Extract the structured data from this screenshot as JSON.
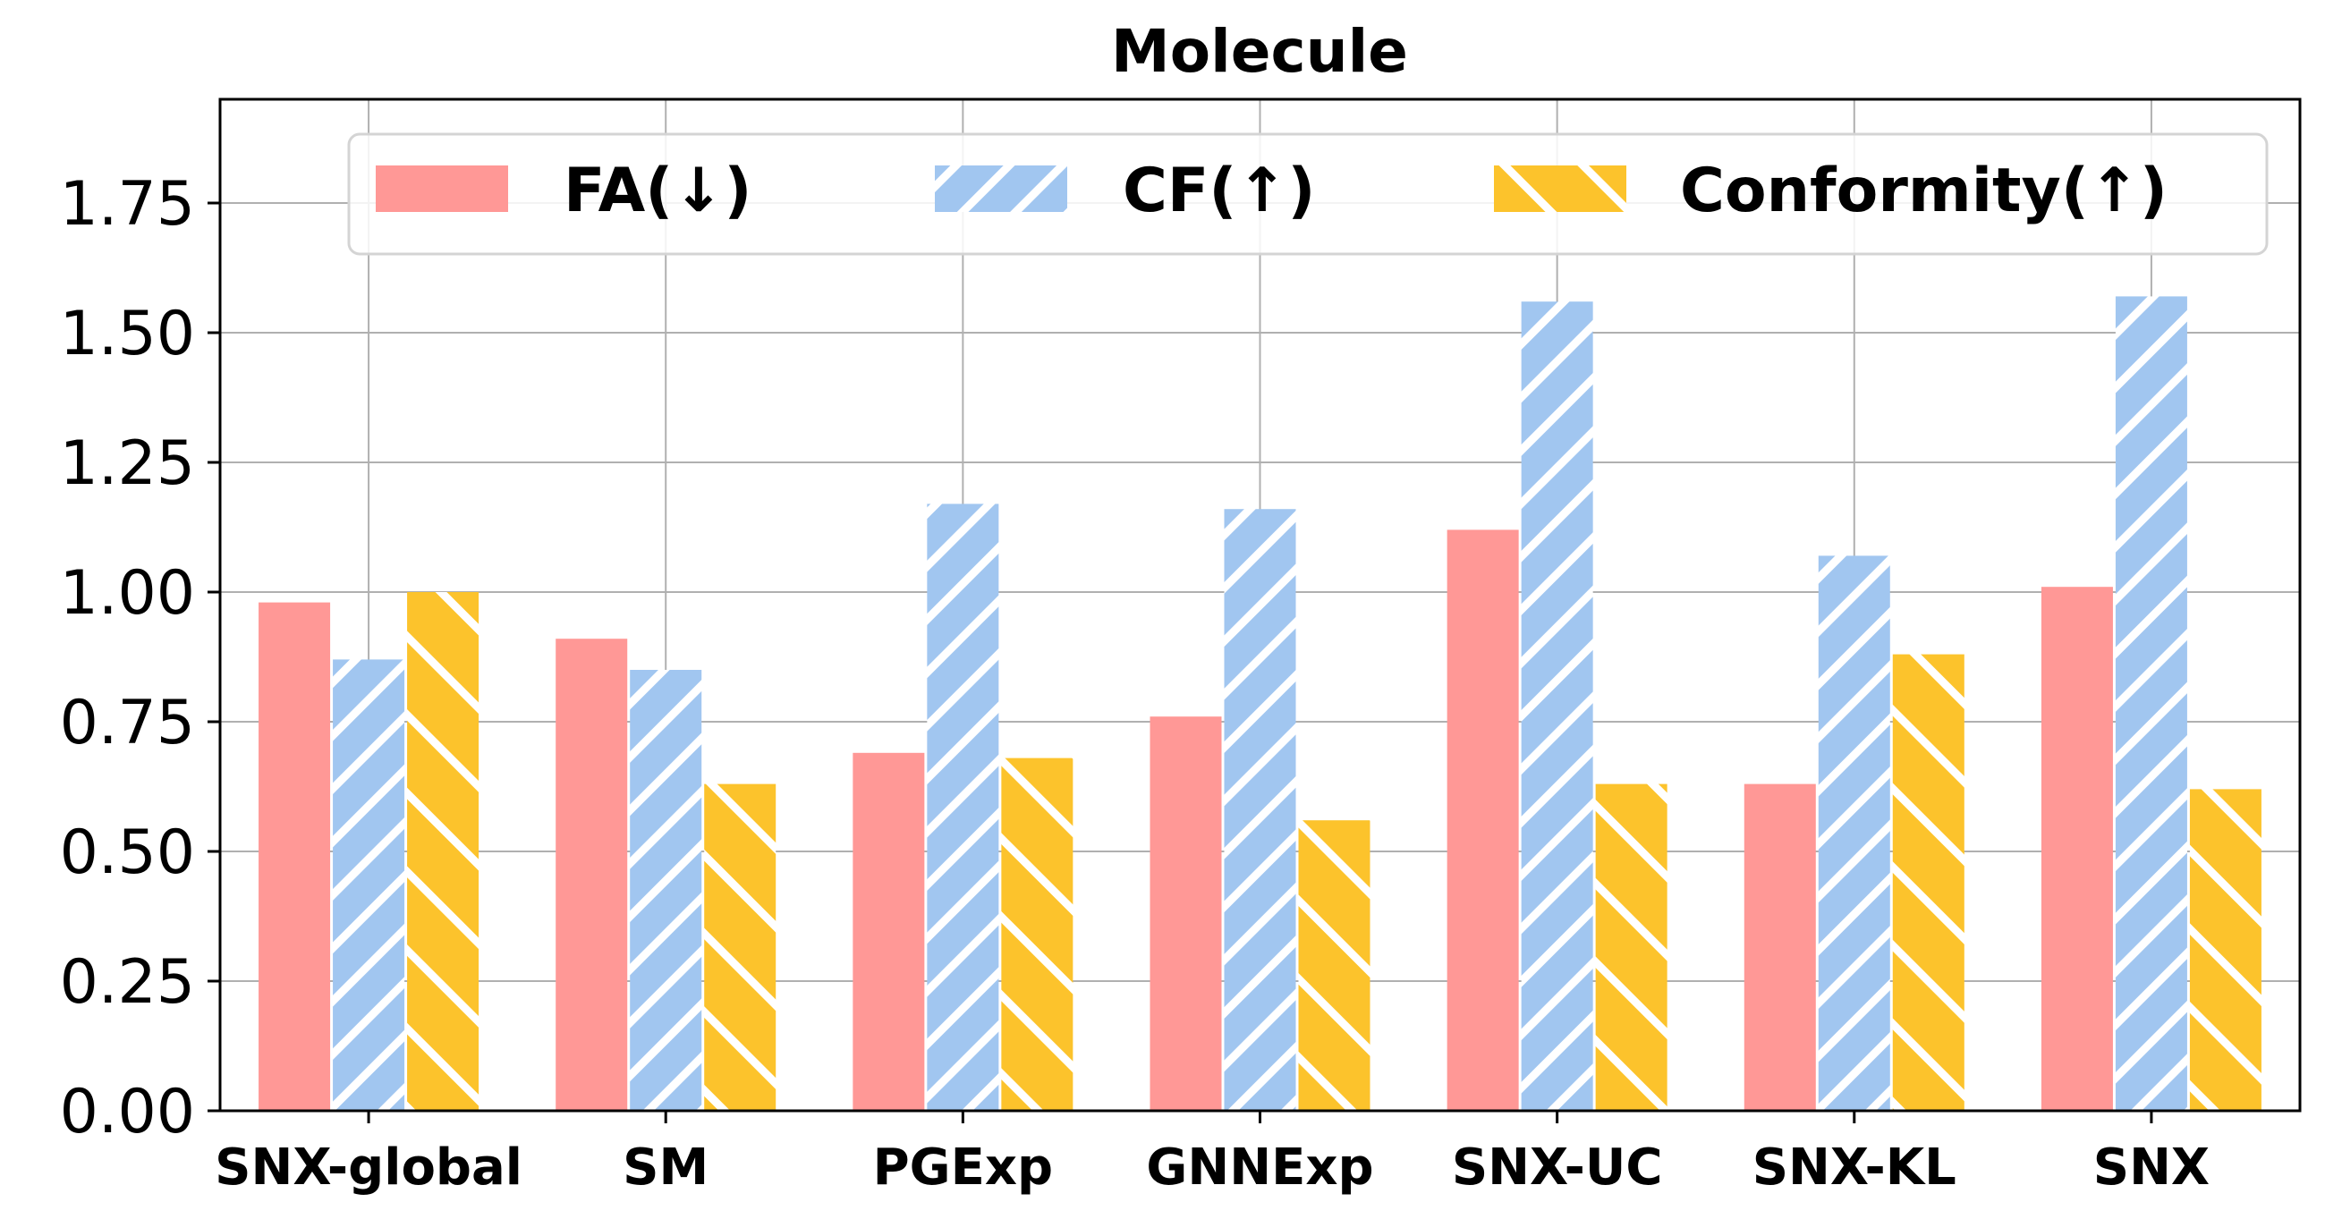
{
  "chart_data": {
    "type": "bar",
    "title": "Molecule",
    "xlabel": "",
    "ylabel": "",
    "ylim": [
      0,
      1.95
    ],
    "yticks": [
      "0.00",
      "0.25",
      "0.50",
      "0.75",
      "1.00",
      "1.25",
      "1.50",
      "1.75"
    ],
    "yticks_values": [
      0,
      0.25,
      0.5,
      0.75,
      1.0,
      1.25,
      1.5,
      1.75
    ],
    "grid": true,
    "legend_position": "top-right",
    "categories": [
      "SNX-global",
      "SM",
      "PGExp",
      "GNNExp",
      "SNX-UC",
      "SNX-KL",
      "SNX"
    ],
    "series": [
      {
        "name": "FA(↓)",
        "color": "#ff9896",
        "hatch": "none",
        "values": [
          0.98,
          0.91,
          0.69,
          0.76,
          1.12,
          0.63,
          1.01
        ]
      },
      {
        "name": "CF(↑)",
        "color": "#a1c6f0",
        "hatch": "forward-diagonal",
        "values": [
          0.87,
          0.85,
          1.17,
          1.16,
          1.56,
          1.07,
          1.57
        ]
      },
      {
        "name": "Conformity(↑)",
        "color": "#fcc32c",
        "hatch": "back-diagonal",
        "values": [
          1.0,
          0.63,
          0.68,
          0.56,
          0.63,
          0.88,
          0.62
        ]
      }
    ]
  }
}
